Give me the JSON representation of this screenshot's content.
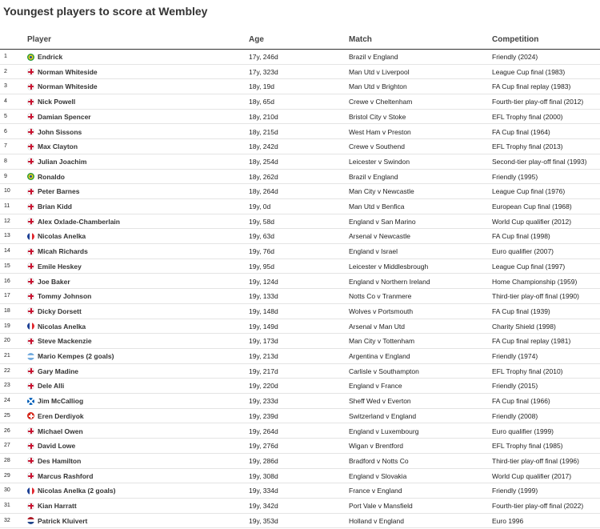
{
  "header": {
    "title": "Youngest players to score at Wembley"
  },
  "table": {
    "columns": [
      "Player",
      "Age",
      "Match",
      "Competition"
    ],
    "rows": [
      [
        1,
        "Endrick",
        "17y, 246d",
        "Brazil v England",
        "Friendly (2024)"
      ],
      [
        2,
        "Norman Whiteside",
        "17y, 323d",
        "Man Utd v Liverpool",
        "League Cup final (1983)"
      ],
      [
        3,
        "Norman Whiteside",
        "18y, 19d",
        "Man Utd v Brighton",
        "FA Cup final replay (1983)"
      ],
      [
        4,
        "Nick Powell",
        "18y, 65d",
        "Crewe v Cheltenham",
        "Fourth-tier play-off final (2012)"
      ],
      [
        5,
        "Damian Spencer",
        "18y, 210d",
        "Bristol City v Stoke",
        "EFL Trophy final (2000)"
      ],
      [
        6,
        "John Sissons",
        "18y, 215d",
        "West Ham v Preston",
        "FA Cup final (1964)"
      ],
      [
        7,
        "Max Clayton",
        "18y, 242d",
        "Crewe v Southend",
        "EFL Trophy final (2013)"
      ],
      [
        8,
        "Julian Joachim",
        "18y, 254d",
        "Leicester v Swindon",
        "Second-tier play-off final (1993)"
      ],
      [
        9,
        "Ronaldo",
        "18y, 262d",
        "Brazil v England",
        "Friendly (1995)"
      ],
      [
        10,
        "Peter Barnes",
        "18y, 264d",
        "Man City v Newcastle",
        "League Cup final (1976)"
      ],
      [
        11,
        "Brian Kidd",
        "19y, 0d",
        "Man Utd v Benfica",
        "European Cup final (1968)"
      ],
      [
        12,
        "Alex Oxlade-Chamberlain",
        "19y, 58d",
        "England v San Marino",
        "World Cup qualifier (2012)"
      ],
      [
        13,
        "Nicolas Anelka",
        "19y, 63d",
        "Arsenal v Newcastle",
        "FA Cup final (1998)"
      ],
      [
        14,
        "Micah Richards",
        "19y, 76d",
        "England v Israel",
        "Euro qualifier (2007)"
      ],
      [
        15,
        "Emile Heskey",
        "19y, 95d",
        "Leicester v Middlesbrough",
        "League Cup final (1997)"
      ],
      [
        16,
        "Joe Baker",
        "19y, 124d",
        "England v Northern Ireland",
        "Home Championship (1959)"
      ],
      [
        17,
        "Tommy Johnson",
        "19y, 133d",
        "Notts Co v Tranmere",
        "Third-tier play-off final (1990)"
      ],
      [
        18,
        "Dicky Dorsett",
        "19y, 148d",
        "Wolves v Portsmouth",
        "FA Cup final (1939)"
      ],
      [
        19,
        "Nicolas Anelka",
        "19y, 149d",
        "Arsenal v Man Utd",
        "Charity Shield (1998)"
      ],
      [
        20,
        "Steve Mackenzie",
        "19y, 173d",
        "Man City v Tottenham",
        "FA Cup final replay (1981)"
      ],
      [
        21,
        "Mario Kempes (2 goals)",
        "19y, 213d",
        "Argentina v England",
        "Friendly (1974)"
      ],
      [
        22,
        "Gary Madine",
        "19y, 217d",
        "Carlisle v Southampton",
        "EFL Trophy final (2010)"
      ],
      [
        23,
        "Dele Alli",
        "19y, 220d",
        "England v France",
        "Friendly (2015)"
      ],
      [
        24,
        "Jim McCalliog",
        "19y, 233d",
        "Sheff Wed v Everton",
        "FA Cup final (1966)"
      ],
      [
        25,
        "Eren Derdiyok",
        "19y, 239d",
        "Switzerland v England",
        "Friendly (2008)"
      ],
      [
        26,
        "Michael Owen",
        "19y, 264d",
        "England v Luxembourg",
        "Euro qualifier (1999)"
      ],
      [
        27,
        "David Lowe",
        "19y, 276d",
        "Wigan v Brentford",
        "EFL Trophy final (1985)"
      ],
      [
        28,
        "Des Hamilton",
        "19y, 286d",
        "Bradford v Notts Co",
        "Third-tier play-off final (1996)"
      ],
      [
        29,
        "Marcus Rashford",
        "19y, 308d",
        "England v Slovakia",
        "World Cup qualifier (2017)"
      ],
      [
        30,
        "Nicolas Anelka (2 goals)",
        "19y, 334d",
        "France v England",
        "Friendly (1999)"
      ],
      [
        31,
        "Kian Harratt",
        "19y, 342d",
        "Port Vale v Mansfield",
        "Fourth-tier play-off final (2022)"
      ],
      [
        32,
        "Patrick Kluivert",
        "19y, 353d",
        "Holland v England",
        "Euro 1996"
      ]
    ]
  }
}
